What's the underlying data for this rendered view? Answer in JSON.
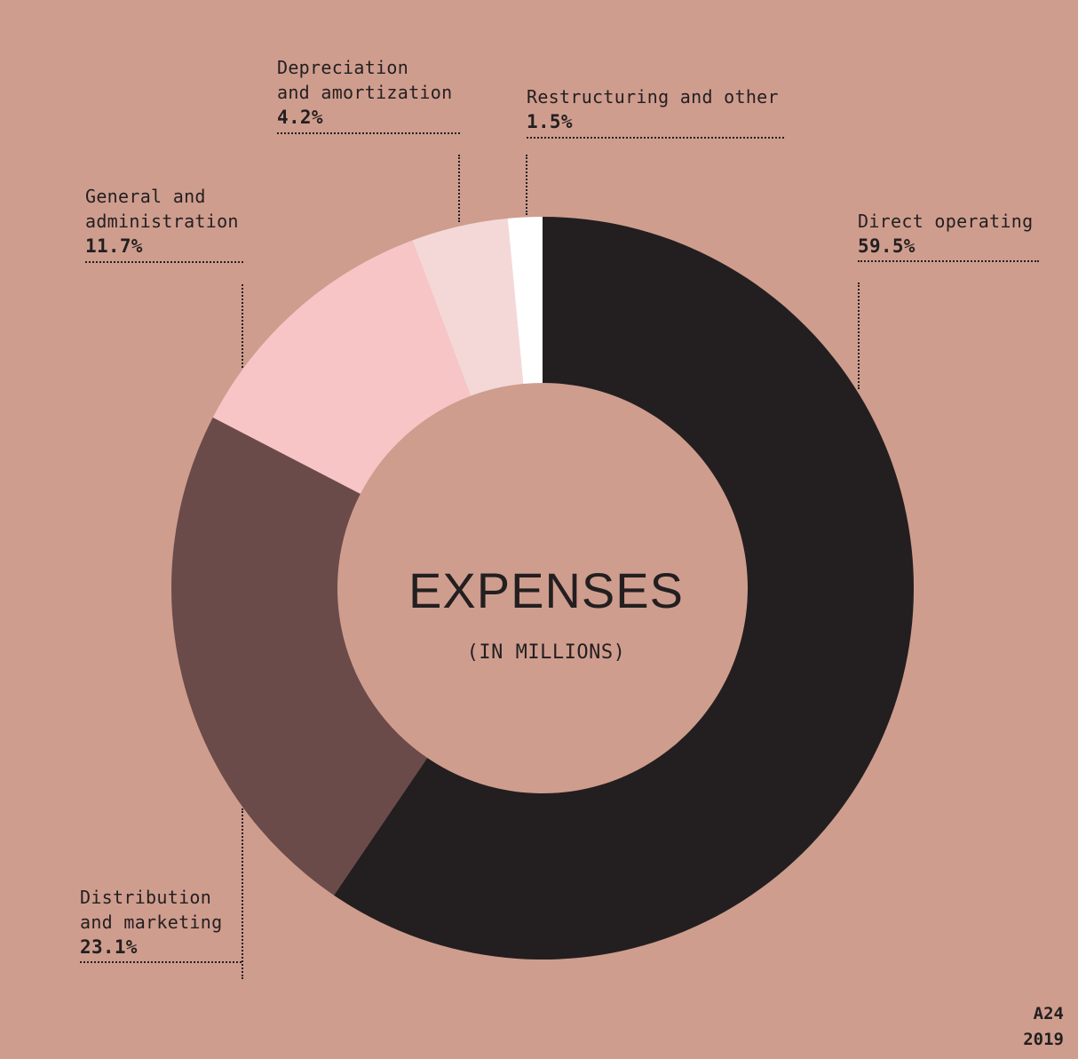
{
  "chart_data": {
    "type": "pie",
    "title": "EXPENSES",
    "subtitle": "(IN MILLIONS)",
    "slices": [
      {
        "name": "Direct operating",
        "label": "Direct operating",
        "percent_label": "59.5%",
        "value": 59.5,
        "color": "#231f20"
      },
      {
        "name": "Distribution and marketing",
        "label": "Distribution\nand marketing",
        "percent_label": "23.1%",
        "value": 23.1,
        "color": "#6a4b49"
      },
      {
        "name": "General and administration",
        "label": "General and\nadministration",
        "percent_label": "11.7%",
        "value": 11.7,
        "color": "#f7c5c6"
      },
      {
        "name": "Depreciation and amortization",
        "label": "Depreciation\nand amortization",
        "percent_label": "4.2%",
        "value": 4.2,
        "color": "#f4d8d7"
      },
      {
        "name": "Restructuring and other",
        "label": "Restructuring and other",
        "percent_label": "1.5%",
        "value": 1.5,
        "color": "#ffffff"
      }
    ]
  },
  "footer": {
    "brand": "A24",
    "year": "2019"
  },
  "colors": {
    "background": "#cf9d8e",
    "text": "#231f20"
  }
}
